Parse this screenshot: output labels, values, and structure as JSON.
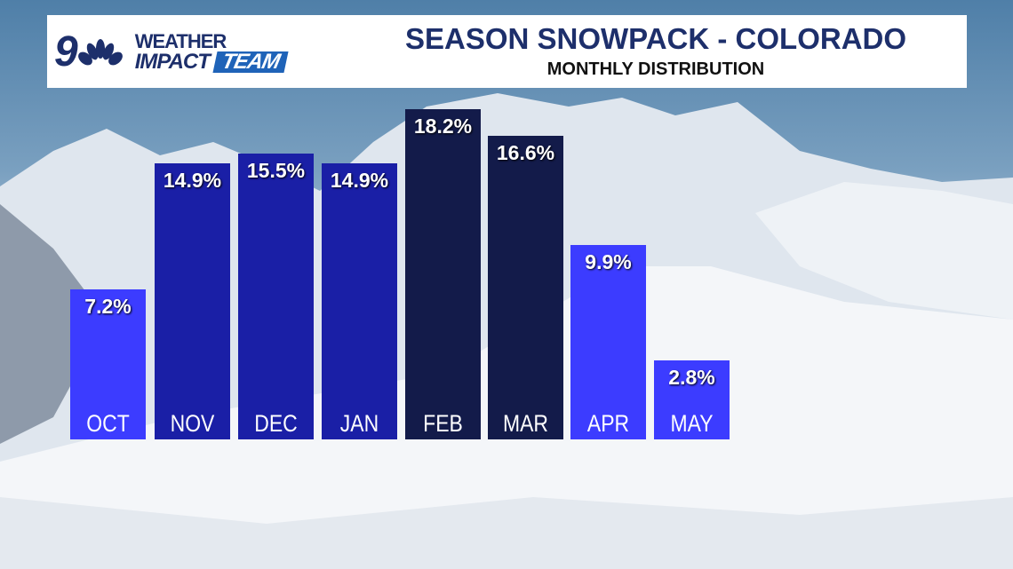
{
  "header": {
    "logo_number": "9",
    "logo_weather": "WEATHER",
    "logo_impact": "IMPACT",
    "logo_team": "TEAM",
    "title": "SEASON SNOWPACK - COLORADO",
    "subtitle": "MONTHLY DISTRIBUTION"
  },
  "chart_data": {
    "type": "bar",
    "title": "SEASON SNOWPACK - COLORADO",
    "subtitle": "MONTHLY DISTRIBUTION",
    "categories": [
      "OCT",
      "NOV",
      "DEC",
      "JAN",
      "FEB",
      "MAR",
      "APR",
      "MAY"
    ],
    "values": [
      7.2,
      14.9,
      15.5,
      14.9,
      18.2,
      16.6,
      9.9,
      2.8
    ],
    "labels": [
      "7.2%",
      "14.9%",
      "15.5%",
      "14.9%",
      "18.2%",
      "16.6%",
      "9.9%",
      "2.8%"
    ],
    "colors": [
      "#3c3cff",
      "#1a1fa6",
      "#1a1fa6",
      "#1a1fa6",
      "#131b4a",
      "#131b4a",
      "#3c3cff",
      "#3c3cff"
    ],
    "unit": "%",
    "xlabel": "",
    "ylabel": "",
    "grid": false
  }
}
